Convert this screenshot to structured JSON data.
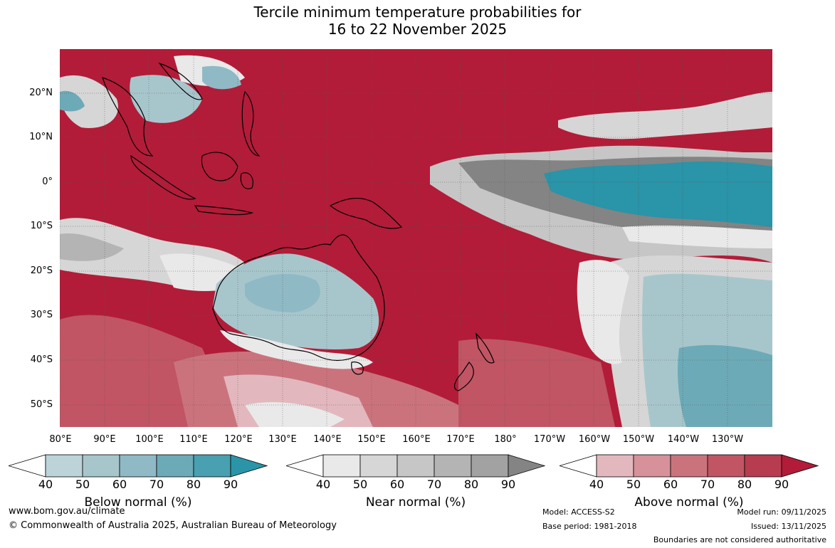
{
  "title": {
    "line1": "Tercile minimum temperature probabilities for",
    "line2": "16 to 22 November 2025"
  },
  "map": {
    "region": "Western Pacific and Australia",
    "lat_labels": [
      "20°N",
      "10°N",
      "0°",
      "10°S",
      "20°S",
      "30°S",
      "40°S",
      "50°S"
    ],
    "lon_labels": [
      "80°E",
      "90°E",
      "100°E",
      "110°E",
      "120°E",
      "130°E",
      "140°E",
      "150°E",
      "160°E",
      "170°E",
      "180°",
      "170°W",
      "160°W",
      "150°W",
      "140°W",
      "130°W"
    ],
    "colors": {
      "above": [
        "#e2b8be",
        "#d6919a",
        "#cb737d",
        "#c15564",
        "#b83c4f",
        "#b21c38"
      ],
      "near": [
        "#e9e9e9",
        "#d6d6d6",
        "#c6c6c6",
        "#b4b4b4",
        "#a2a2a2",
        "#848484"
      ],
      "below": [
        "#bdd3da",
        "#a7c6cc",
        "#8fb9c5",
        "#6daab7",
        "#48a0b0",
        "#2a94a8"
      ]
    }
  },
  "colorbars": [
    {
      "id": "below",
      "title": "Below normal (%)",
      "ticks": [
        "40",
        "50",
        "60",
        "70",
        "80",
        "90"
      ],
      "colors": [
        "#bdd3da",
        "#a7c6cc",
        "#8fb9c5",
        "#6daab7",
        "#48a0b0",
        "#2a94a8"
      ]
    },
    {
      "id": "near",
      "title": "Near normal (%)",
      "ticks": [
        "40",
        "50",
        "60",
        "70",
        "80",
        "90"
      ],
      "colors": [
        "#e9e9e9",
        "#d6d6d6",
        "#c6c6c6",
        "#b4b4b4",
        "#a2a2a2",
        "#848484"
      ]
    },
    {
      "id": "above",
      "title": "Above normal (%)",
      "ticks": [
        "40",
        "50",
        "60",
        "70",
        "80",
        "90"
      ],
      "colors": [
        "#e2b8be",
        "#d6919a",
        "#cb737d",
        "#c15564",
        "#b83c4f",
        "#b21c38"
      ]
    }
  ],
  "footer": {
    "website": "www.bom.gov.au/climate",
    "copyright": "© Commonwealth of Australia 2025, Australian Bureau of Meteorology",
    "model": "Model: ACCESS-S2",
    "base_period": "Base period: 1981-2018",
    "model_run": "Model run: 09/11/2025",
    "issued": "Issued: 13/11/2025",
    "disclaimer": "Boundaries are not considered authoritative"
  }
}
